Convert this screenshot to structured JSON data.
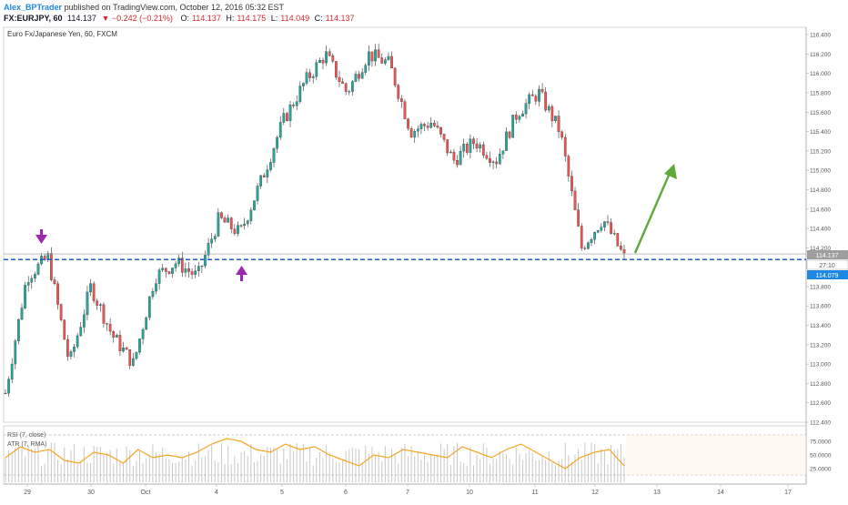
{
  "header": {
    "author": "Alex_BPTrader",
    "published": "published on TradingView.com, October 12, 2016 05:32 EST"
  },
  "quote": {
    "symbol": "FX:EURJPY, 60",
    "last": "114.137",
    "change": "−0.242 (−0.21%)",
    "open_label": "O:",
    "open": "114.137",
    "high_label": "H:",
    "high": "114.175",
    "low_label": "L:",
    "low": "114.049",
    "close_label": "C:",
    "close": "114.137"
  },
  "legend": {
    "series_title": "Euro Fx/Japanese Yen, 60, FXCM",
    "rsi_title": "RSI (7, close)",
    "atr_title": "ATR (7, RMA)"
  },
  "price_badges": {
    "last": "114.137",
    "countdown": "27:10",
    "line": "114.079"
  },
  "colors": {
    "up": "#26a69a",
    "down": "#ef5350",
    "dashed_line": "#1e5bd8",
    "arrow_markers": "#9c27b0",
    "projection_arrow": "#5fa83a",
    "rsi_line": "#f5a623",
    "atr_bars": "#c8c8c8",
    "badge_last": "#9e9e9e",
    "badge_line": "#1e88e5"
  },
  "chart_data": [
    {
      "type": "candlestick",
      "title": "Euro Fx/Japanese Yen, 60, FXCM",
      "x_tick_labels": [
        "29",
        "30",
        "Oct",
        "4",
        "5",
        "6",
        "7",
        "10",
        "11",
        "12",
        "13",
        "14",
        "17"
      ],
      "y_tick_labels": [
        "112.400",
        "112.600",
        "112.800",
        "113.000",
        "113.200",
        "113.400",
        "113.600",
        "113.800",
        "114.000",
        "114.200",
        "114.400",
        "114.600",
        "114.800",
        "115.000",
        "115.200",
        "115.400",
        "115.600",
        "115.800",
        "116.000",
        "116.200",
        "116.400"
      ],
      "ylim": [
        112.4,
        116.42
      ],
      "support_level": 114.079,
      "series": [
        {
          "name": "EURJPY",
          "close_path": [
            {
              "x": "29",
              "close": 112.7
            },
            {
              "x": "29",
              "close": 113.9
            },
            {
              "x": "29",
              "close": 114.1
            },
            {
              "x": "30",
              "close": 113.0
            },
            {
              "x": "30",
              "close": 113.8
            },
            {
              "x": "30",
              "close": 113.3
            },
            {
              "x": "Oct",
              "close": 113.0
            },
            {
              "x": "Oct",
              "close": 113.9
            },
            {
              "x": "Oct",
              "close": 114.05
            },
            {
              "x": "4",
              "close": 113.9
            },
            {
              "x": "4",
              "close": 114.5
            },
            {
              "x": "4",
              "close": 114.35
            },
            {
              "x": "4",
              "close": 114.9
            },
            {
              "x": "5",
              "close": 115.5
            },
            {
              "x": "5",
              "close": 115.9
            },
            {
              "x": "5",
              "close": 116.2
            },
            {
              "x": "6",
              "close": 115.8
            },
            {
              "x": "6",
              "close": 116.2
            },
            {
              "x": "7",
              "close": 116.1
            },
            {
              "x": "7",
              "close": 115.4
            },
            {
              "x": "7",
              "close": 115.5
            },
            {
              "x": "10",
              "close": 115.1
            },
            {
              "x": "10",
              "close": 115.3
            },
            {
              "x": "10",
              "close": 115.1
            },
            {
              "x": "11",
              "close": 115.6
            },
            {
              "x": "11",
              "close": 115.8
            },
            {
              "x": "11",
              "close": 115.4
            },
            {
              "x": "11",
              "close": 114.2
            },
            {
              "x": "12",
              "close": 114.5
            },
            {
              "x": "12",
              "close": 114.1
            }
          ]
        }
      ]
    },
    {
      "type": "line",
      "title": "RSI (7, close)",
      "y_tick_labels": [
        "75.0000",
        "50.0000",
        "25.0000"
      ],
      "ylim": [
        0,
        100
      ],
      "series": [
        {
          "name": "RSI (7, close)",
          "values": [
            45,
            65,
            55,
            60,
            40,
            35,
            55,
            50,
            35,
            60,
            45,
            50,
            45,
            55,
            70,
            80,
            75,
            60,
            55,
            70,
            60,
            65,
            50,
            40,
            30,
            50,
            45,
            60,
            55,
            50,
            45,
            65,
            55,
            45,
            60,
            70,
            55,
            40,
            25,
            45,
            55,
            60,
            30
          ]
        }
      ]
    }
  ]
}
